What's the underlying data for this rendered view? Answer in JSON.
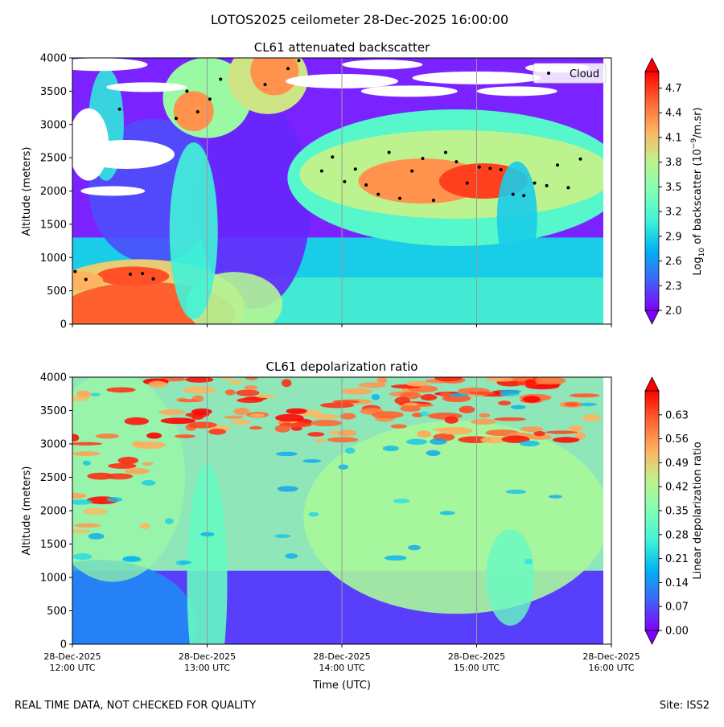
{
  "suptitle": "LOTOS2025 ceilometer 28-Dec-2025 16:00:00",
  "footer": {
    "left": "REAL TIME DATA, NOT CHECKED FOR QUALITY",
    "right": "Site: ISS2"
  },
  "chart_data": [
    {
      "type": "heatmap",
      "title": "CL61 attenuated backscatter",
      "ylabel": "Altitude (meters)",
      "ylim": [
        0,
        4000
      ],
      "yticks": [
        "0",
        "500",
        "1000",
        "1500",
        "2000",
        "2500",
        "3000",
        "3500",
        "4000"
      ],
      "xlim_hours_utc": [
        12,
        16
      ],
      "colorbar": {
        "label_prefix": "Log",
        "label_sub": "10",
        "label_mid": " of backscatter (10",
        "label_sup": "−9",
        "label_suffix": "/m.sr)",
        "range": [
          2.0,
          4.9
        ],
        "ticks": [
          "2.0",
          "2.3",
          "2.6",
          "2.9",
          "3.2",
          "3.5",
          "3.8",
          "4.1",
          "4.4",
          "4.7"
        ]
      },
      "legend": {
        "entries": [
          "Cloud"
        ],
        "position": "top-right"
      },
      "cloud_points": [
        {
          "t": 12.02,
          "alt": 790
        },
        {
          "t": 12.1,
          "alt": 670
        },
        {
          "t": 12.35,
          "alt": 3230
        },
        {
          "t": 12.43,
          "alt": 750
        },
        {
          "t": 12.52,
          "alt": 760
        },
        {
          "t": 12.6,
          "alt": 680
        },
        {
          "t": 12.77,
          "alt": 3090
        },
        {
          "t": 12.85,
          "alt": 3500
        },
        {
          "t": 12.93,
          "alt": 3190
        },
        {
          "t": 13.02,
          "alt": 3380
        },
        {
          "t": 13.1,
          "alt": 3680
        },
        {
          "t": 13.43,
          "alt": 3600
        },
        {
          "t": 13.6,
          "alt": 3840
        },
        {
          "t": 13.68,
          "alt": 3960
        },
        {
          "t": 13.85,
          "alt": 2300
        },
        {
          "t": 13.93,
          "alt": 2510
        },
        {
          "t": 14.02,
          "alt": 2140
        },
        {
          "t": 14.1,
          "alt": 2330
        },
        {
          "t": 14.18,
          "alt": 2090
        },
        {
          "t": 14.27,
          "alt": 1950
        },
        {
          "t": 14.35,
          "alt": 2580
        },
        {
          "t": 14.43,
          "alt": 1890
        },
        {
          "t": 14.52,
          "alt": 2300
        },
        {
          "t": 14.6,
          "alt": 2490
        },
        {
          "t": 14.68,
          "alt": 1860
        },
        {
          "t": 14.77,
          "alt": 2580
        },
        {
          "t": 14.85,
          "alt": 2440
        },
        {
          "t": 14.93,
          "alt": 2120
        },
        {
          "t": 15.02,
          "alt": 2360
        },
        {
          "t": 15.1,
          "alt": 2340
        },
        {
          "t": 15.18,
          "alt": 2320
        },
        {
          "t": 15.27,
          "alt": 1950
        },
        {
          "t": 15.35,
          "alt": 1930
        },
        {
          "t": 15.43,
          "alt": 2120
        },
        {
          "t": 15.52,
          "alt": 2080
        },
        {
          "t": 15.6,
          "alt": 2390
        },
        {
          "t": 15.68,
          "alt": 2050
        },
        {
          "t": 15.77,
          "alt": 2480
        }
      ]
    },
    {
      "type": "heatmap",
      "title": "CL61 depolarization ratio",
      "ylabel": "Altitude (meters)",
      "xlabel": "Time (UTC)",
      "ylim": [
        0,
        4000
      ],
      "yticks": [
        "0",
        "500",
        "1000",
        "1500",
        "2000",
        "2500",
        "3000",
        "3500",
        "4000"
      ],
      "xlim_hours_utc": [
        12,
        16
      ],
      "xticks": [
        {
          "date": "28-Dec-2025",
          "time": "12:00 UTC"
        },
        {
          "date": "28-Dec-2025",
          "time": "13:00 UTC"
        },
        {
          "date": "28-Dec-2025",
          "time": "14:00 UTC"
        },
        {
          "date": "28-Dec-2025",
          "time": "15:00 UTC"
        },
        {
          "date": "28-Dec-2025",
          "time": "16:00 UTC"
        }
      ],
      "colorbar": {
        "label": "Linear depolarization ratio",
        "range": [
          0.0,
          0.7
        ],
        "ticks": [
          "0.00",
          "0.07",
          "0.14",
          "0.21",
          "0.28",
          "0.35",
          "0.42",
          "0.49",
          "0.56",
          "0.63"
        ]
      }
    }
  ]
}
